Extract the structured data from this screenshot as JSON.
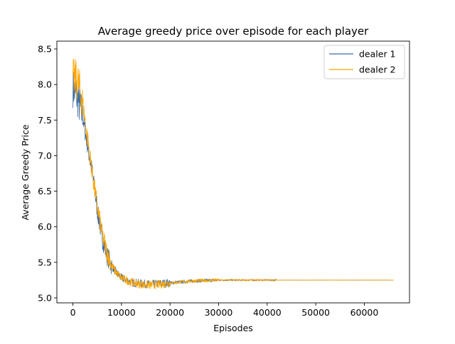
{
  "chart_data": {
    "type": "line",
    "title": "Average greedy price over episode for each player",
    "xlabel": "Episodes",
    "ylabel": "Average Greedy Price",
    "xlim": [
      -3300,
      69300
    ],
    "ylim": [
      4.93,
      8.61
    ],
    "xticks": [
      0,
      10000,
      20000,
      30000,
      40000,
      50000,
      60000
    ],
    "xtick_labels": [
      "0",
      "10000",
      "20000",
      "30000",
      "40000",
      "50000",
      "60000"
    ],
    "yticks": [
      5.0,
      5.5,
      6.0,
      6.5,
      7.0,
      7.5,
      8.0,
      8.5
    ],
    "ytick_labels": [
      "5.0",
      "5.5",
      "6.0",
      "6.5",
      "7.0",
      "7.5",
      "8.0",
      "8.5"
    ],
    "grid": false,
    "legend_position": "upper right",
    "series": [
      {
        "name": "dealer 1",
        "color": "#3b6aa0",
        "x": [
          0,
          1000,
          2000,
          3000,
          4000,
          5000,
          6000,
          7000,
          8000,
          9000,
          10000,
          12000,
          14000,
          16000,
          18000,
          20000,
          25000,
          30000,
          35000,
          40000,
          45000,
          50000,
          55000,
          60000,
          66000
        ],
        "y": [
          7.95,
          7.8,
          7.55,
          7.15,
          6.75,
          6.25,
          5.85,
          5.6,
          5.45,
          5.35,
          5.28,
          5.22,
          5.2,
          5.19,
          5.2,
          5.21,
          5.24,
          5.25,
          5.25,
          5.25,
          5.25,
          5.25,
          5.25,
          5.25,
          5.25
        ]
      },
      {
        "name": "dealer 2",
        "color": "#ffa500",
        "x": [
          0,
          1000,
          2000,
          3000,
          4000,
          5000,
          6000,
          7000,
          8000,
          9000,
          10000,
          12000,
          14000,
          16000,
          18000,
          20000,
          25000,
          30000,
          35000,
          40000,
          45000,
          50000,
          55000,
          60000,
          66000
        ],
        "y": [
          8.1,
          8.05,
          7.75,
          7.25,
          6.75,
          6.3,
          5.9,
          5.65,
          5.45,
          5.35,
          5.28,
          5.22,
          5.19,
          5.18,
          5.19,
          5.21,
          5.24,
          5.25,
          5.25,
          5.25,
          5.25,
          5.25,
          5.25,
          5.25,
          5.25
        ]
      }
    ]
  }
}
